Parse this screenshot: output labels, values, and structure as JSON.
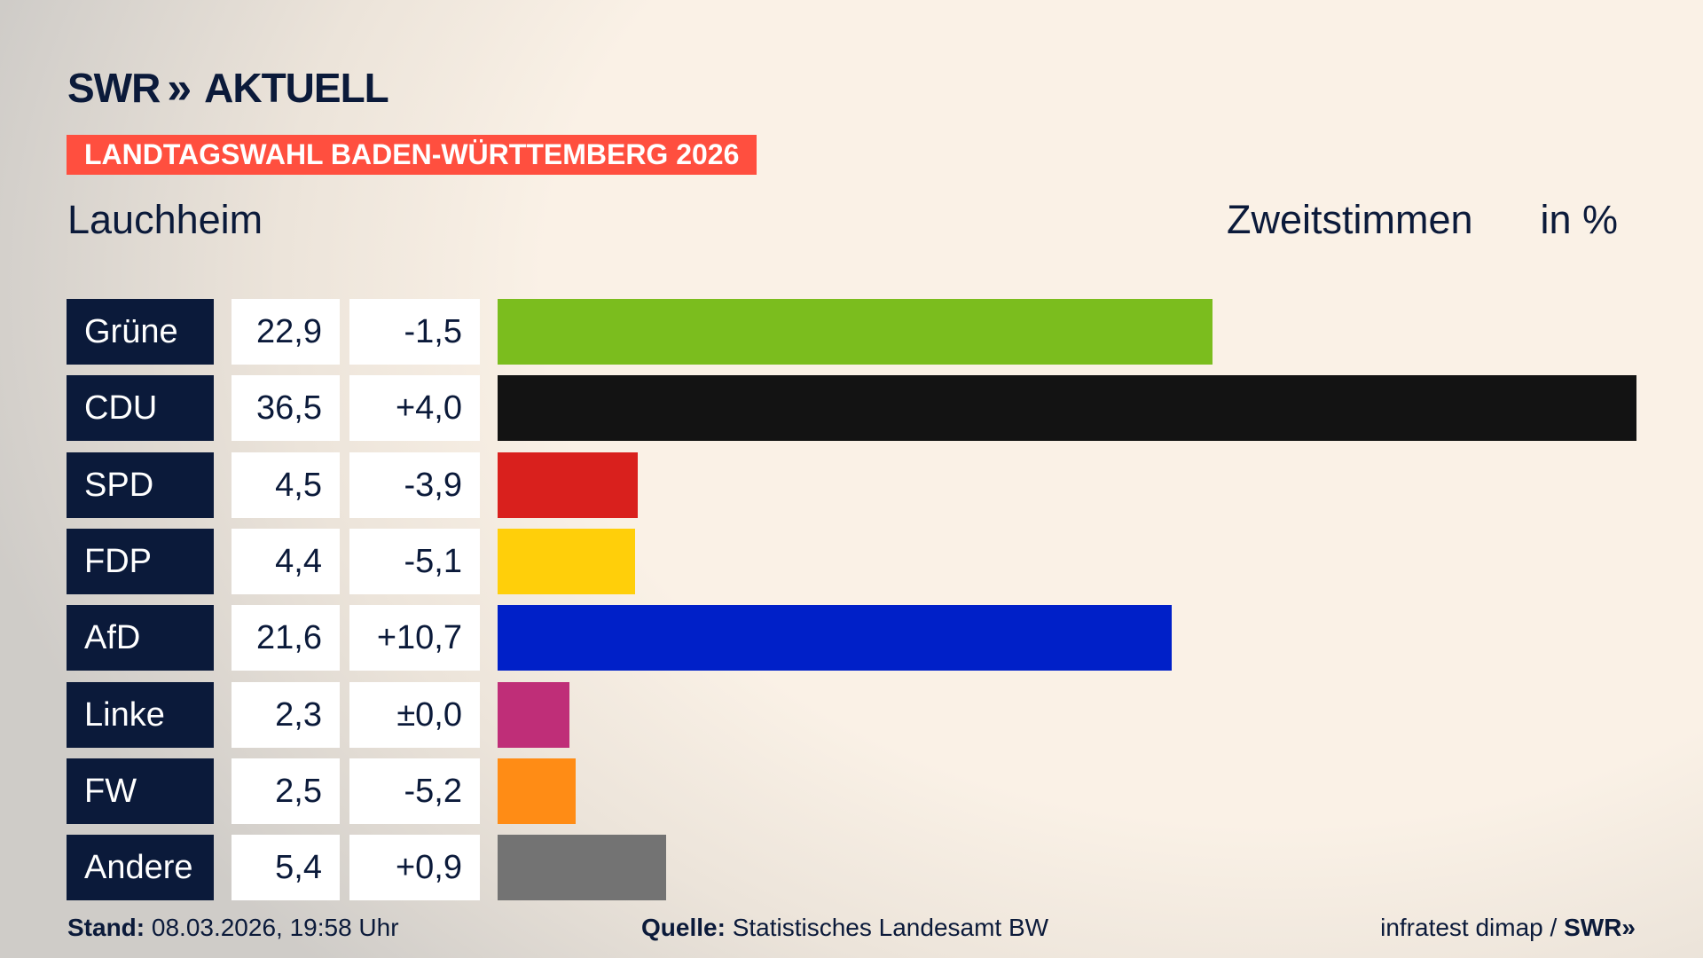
{
  "header": {
    "logo": "SWR",
    "logo_suffix": "AKTUELL",
    "banner": "LANDTAGSWAHL BADEN-WÜRTTEMBERG 2026",
    "place": "Lauchheim",
    "mode": "Zweitstimmen",
    "unit": "in %"
  },
  "chart_data": {
    "type": "bar",
    "orientation": "horizontal",
    "categories": [
      "Grüne",
      "CDU",
      "SPD",
      "FDP",
      "AfD",
      "Linke",
      "FW",
      "Andere"
    ],
    "values": [
      22.9,
      36.5,
      4.5,
      4.4,
      21.6,
      2.3,
      2.5,
      5.4
    ],
    "value_labels": [
      "22,9",
      "36,5",
      "4,5",
      "4,4",
      "21,6",
      "2,3",
      "2,5",
      "5,4"
    ],
    "diff_labels": [
      "-1,5",
      "+4,0",
      "-3,9",
      "-5,1",
      "+10,7",
      "±0,0",
      "-5,2",
      "+0,9"
    ],
    "colors": [
      "#7bbd1e",
      "#131313",
      "#d9201d",
      "#ffcf0a",
      "#0020c8",
      "#bf2e78",
      "#ff8c15",
      "#737373"
    ],
    "xlim": [
      0,
      36.5
    ]
  },
  "footer": {
    "stand_label": "Stand:",
    "stand": "08.03.2026, 19:58 Uhr",
    "source_label": "Quelle:",
    "source": "Statistisches Landesamt BW",
    "credit": "infratest dimap /",
    "credit_logo": "SWR"
  }
}
